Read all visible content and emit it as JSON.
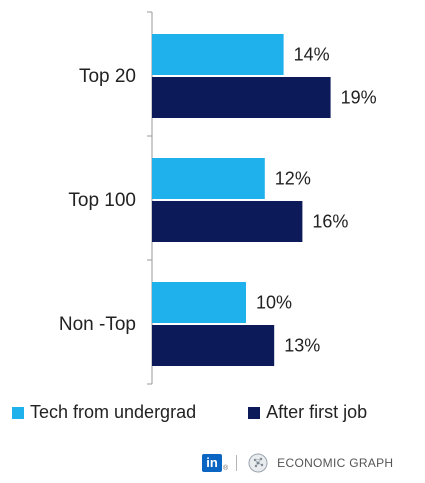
{
  "chart_data": {
    "type": "bar",
    "orientation": "horizontal",
    "categories": [
      "Top 20",
      "Top 100",
      "Non -Top"
    ],
    "series": [
      {
        "name": "Tech from undergrad",
        "values": [
          14,
          12,
          10
        ],
        "color": "#1fb1ec"
      },
      {
        "name": "After first job",
        "values": [
          19,
          16,
          13
        ],
        "color": "#0d1a5a"
      }
    ],
    "value_suffix": "%",
    "xlim": [
      0,
      30
    ],
    "grid": false,
    "legend": "bottom"
  },
  "legend": {
    "items": [
      {
        "label": "Tech from undergrad",
        "color": "#1fb1ec"
      },
      {
        "label": "After first job",
        "color": "#0d1a5a"
      }
    ]
  },
  "footer": {
    "logo_text": "in",
    "registered": "®",
    "brand_text": "ECONOMIC GRAPH"
  }
}
